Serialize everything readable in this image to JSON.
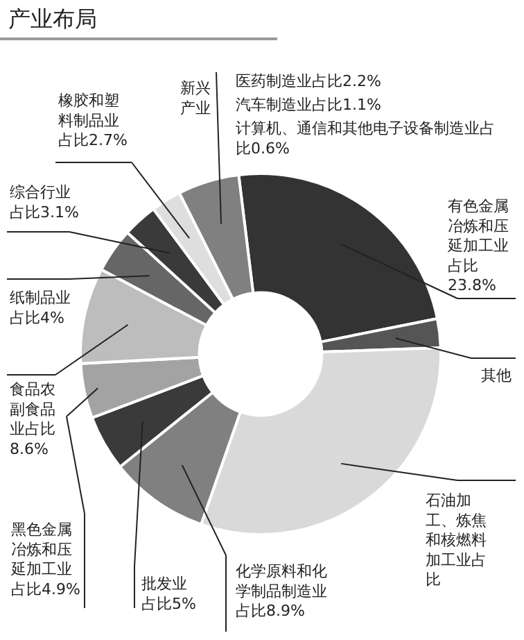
{
  "chart_data": {
    "type": "donut",
    "title": "产业布局",
    "categories": [
      "有色金属冶炼和压延加工业占比23.8%",
      "其他",
      "石油加工、炼焦和核燃料加工业占比",
      "化学原料和化学制品制造业占比8.9%",
      "批发业占比5%",
      "黑色金属冶炼和压延加工业占比4.9%",
      "食品农副食品业占比8.6%",
      "纸制品业占比4%",
      "综合行业占比3.1%",
      "橡胶和塑料制品业占比2.7%",
      "新兴产业"
    ],
    "values": [
      23.8,
      2.6,
      30.9,
      8.9,
      5,
      4.9,
      8.6,
      4,
      3.1,
      2.7,
      5.5
    ],
    "colors": [
      "#333333",
      "#555555",
      "#d9d9d9",
      "#808080",
      "#3a3a3a",
      "#a3a3a3",
      "#bdbdbd",
      "#666666",
      "#3a3a3a",
      "#dedede",
      "#808080"
    ],
    "annotations": [
      "医药制造业占比2.2%",
      "汽车制造业占比1.1%",
      "计算机、通信和其他电子设备制造业占比0.6%"
    ],
    "legend": false
  }
}
